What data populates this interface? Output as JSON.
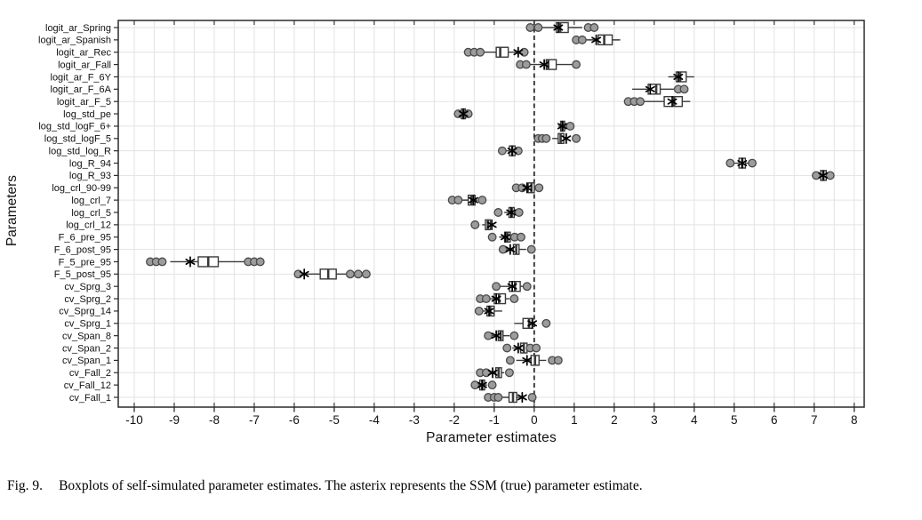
{
  "figure": {
    "caption_prefix": "Fig. 9.",
    "caption": "Boxplots of self-simulated parameter estimates. The asterix represents the SSM (true) parameter estimate."
  },
  "chart_data": {
    "type": "boxplot",
    "orientation": "horizontal",
    "title": "",
    "xlabel": "Parameter estimates",
    "ylabel": "Parameters",
    "xlim": [
      -10.4,
      8.25
    ],
    "xticks": [
      -10,
      -9,
      -8,
      -7,
      -6,
      -5,
      -4,
      -3,
      -2,
      -1,
      0,
      1,
      2,
      3,
      4,
      5,
      6,
      7,
      8
    ],
    "grid": true,
    "grid_step_x": 0.5,
    "zero_line": {
      "x": 0,
      "style": "dashed"
    },
    "legend_note": "asterisk = SSM (true) parameter estimate",
    "colors": {
      "box_fill": "#ffffff",
      "box_stroke": "#3a3a3a",
      "whisker": "#3a3a3a",
      "outlier_fill": "#9c9c9c",
      "outlier_stroke": "#4a4a4a",
      "asterisk": "#000000",
      "grid": "#e3e3e3",
      "frame": "#2b2b2b",
      "zero_line_color": "#1a1a1a"
    },
    "rows": [
      {
        "label": "logit_ar_Spring",
        "ssm_true": 0.6,
        "whisker_lo": 0.2,
        "q1": 0.55,
        "median": 0.65,
        "q3": 0.85,
        "whisker_hi": 1.2,
        "outliers": [
          -0.1,
          0.1,
          1.35,
          1.5
        ]
      },
      {
        "label": "logit_ar_Spanish",
        "ssm_true": 1.55,
        "whisker_lo": 1.3,
        "q1": 1.6,
        "median": 1.75,
        "q3": 1.95,
        "whisker_hi": 2.15,
        "outliers": [
          1.05,
          1.2
        ]
      },
      {
        "label": "logit_ar_Rec",
        "ssm_true": -0.4,
        "whisker_lo": -1.3,
        "q1": -0.95,
        "median": -0.85,
        "q3": -0.65,
        "whisker_hi": -0.45,
        "outliers": [
          -1.65,
          -1.5,
          -1.35,
          -0.25
        ]
      },
      {
        "label": "logit_ar_Fall",
        "ssm_true": 0.25,
        "whisker_lo": -0.1,
        "q1": 0.3,
        "median": 0.35,
        "q3": 0.55,
        "whisker_hi": 0.95,
        "outliers": [
          -0.35,
          -0.2,
          1.05
        ]
      },
      {
        "label": "logit_ar_F_6Y",
        "ssm_true": 3.6,
        "whisker_lo": 3.35,
        "q1": 3.55,
        "median": 3.65,
        "q3": 3.8,
        "whisker_hi": 4.0,
        "outliers": []
      },
      {
        "label": "logit_ar_F_6A",
        "ssm_true": 2.9,
        "whisker_lo": 2.45,
        "q1": 2.85,
        "median": 3.05,
        "q3": 3.15,
        "whisker_hi": 3.5,
        "outliers": [
          3.6,
          3.75
        ]
      },
      {
        "label": "logit_ar_F_5",
        "ssm_true": 3.45,
        "whisker_lo": 2.75,
        "q1": 3.25,
        "median": 3.5,
        "q3": 3.7,
        "whisker_hi": 3.9,
        "outliers": [
          2.35,
          2.5,
          2.65
        ]
      },
      {
        "label": "log_std_pe",
        "ssm_true": -1.77,
        "whisker_lo": -1.88,
        "q1": -1.82,
        "median": -1.77,
        "q3": -1.72,
        "whisker_hi": -1.66,
        "outliers": [
          -1.9,
          -1.65
        ]
      },
      {
        "label": "log_std_logF_6+",
        "ssm_true": 0.7,
        "whisker_lo": 0.6,
        "q1": 0.66,
        "median": 0.71,
        "q3": 0.76,
        "whisker_hi": 0.8,
        "outliers": [
          0.9
        ]
      },
      {
        "label": "log_std_logF_5",
        "ssm_true": 0.8,
        "whisker_lo": 0.45,
        "q1": 0.6,
        "median": 0.66,
        "q3": 0.74,
        "whisker_hi": 0.79,
        "outliers": [
          0.1,
          0.2,
          0.3,
          1.05
        ]
      },
      {
        "label": "log_std_log_R",
        "ssm_true": -0.55,
        "whisker_lo": -0.72,
        "q1": -0.62,
        "median": -0.55,
        "q3": -0.48,
        "whisker_hi": -0.4,
        "outliers": [
          -0.8,
          -0.4
        ]
      },
      {
        "label": "log_R_94",
        "ssm_true": 5.2,
        "whisker_lo": 5.0,
        "q1": 5.12,
        "median": 5.2,
        "q3": 5.28,
        "whisker_hi": 5.35,
        "outliers": [
          4.9,
          5.45
        ]
      },
      {
        "label": "log_R_93",
        "ssm_true": 7.22,
        "whisker_lo": 7.1,
        "q1": 7.16,
        "median": 7.23,
        "q3": 7.3,
        "whisker_hi": 7.34,
        "outliers": [
          7.05,
          7.4
        ]
      },
      {
        "label": "log_crl_90-99",
        "ssm_true": -0.18,
        "whisker_lo": -0.22,
        "q1": -0.15,
        "median": -0.07,
        "q3": 0.0,
        "whisker_hi": 0.04,
        "outliers": [
          -0.45,
          -0.3,
          0.12
        ]
      },
      {
        "label": "log_crl_7",
        "ssm_true": -1.52,
        "whisker_lo": -1.85,
        "q1": -1.65,
        "median": -1.57,
        "q3": -1.48,
        "whisker_hi": -1.42,
        "outliers": [
          -2.05,
          -1.9,
          -1.3
        ]
      },
      {
        "label": "log_crl_5",
        "ssm_true": -0.58,
        "whisker_lo": -0.75,
        "q1": -0.63,
        "median": -0.56,
        "q3": -0.5,
        "whisker_hi": -0.46,
        "outliers": [
          -0.9,
          -0.38
        ]
      },
      {
        "label": "log_crl_12",
        "ssm_true": -1.06,
        "whisker_lo": -1.3,
        "q1": -1.22,
        "median": -1.16,
        "q3": -1.1,
        "whisker_hi": -1.07,
        "outliers": [
          -1.48
        ]
      },
      {
        "label": "F_6_pre_95",
        "ssm_true": -0.72,
        "whisker_lo": -0.88,
        "q1": -0.74,
        "median": -0.67,
        "q3": -0.6,
        "whisker_hi": -0.55,
        "outliers": [
          -1.05,
          -0.49,
          -0.33
        ]
      },
      {
        "label": "F_6_post_95",
        "ssm_true": -0.6,
        "whisker_lo": -0.68,
        "q1": -0.52,
        "median": -0.45,
        "q3": -0.38,
        "whisker_hi": -0.2,
        "outliers": [
          -0.78,
          -0.07
        ]
      },
      {
        "label": "F_5_pre_95",
        "ssm_true": -8.6,
        "whisker_lo": -9.1,
        "q1": -8.4,
        "median": -8.15,
        "q3": -7.9,
        "whisker_hi": -7.25,
        "outliers": [
          -9.6,
          -9.45,
          -9.3,
          -7.15,
          -7.0,
          -6.85
        ]
      },
      {
        "label": "F_5_post_95",
        "ssm_true": -5.75,
        "whisker_lo": -5.72,
        "q1": -5.35,
        "median": -5.15,
        "q3": -4.95,
        "whisker_hi": -4.65,
        "outliers": [
          -5.9,
          -4.6,
          -4.4,
          -4.2
        ]
      },
      {
        "label": "cv_Sprg_3",
        "ssm_true": -0.55,
        "whisker_lo": -0.85,
        "q1": -0.62,
        "median": -0.48,
        "q3": -0.35,
        "whisker_hi": -0.28,
        "outliers": [
          -0.95,
          -0.18
        ]
      },
      {
        "label": "cv_Sprg_2",
        "ssm_true": -0.95,
        "whisker_lo": -1.1,
        "q1": -1.0,
        "median": -0.88,
        "q3": -0.72,
        "whisker_hi": -0.62,
        "outliers": [
          -1.35,
          -1.2,
          -0.5
        ]
      },
      {
        "label": "cv_Sprg_14",
        "ssm_true": -1.13,
        "whisker_lo": -1.3,
        "q1": -1.18,
        "median": -1.1,
        "q3": -1.0,
        "whisker_hi": -0.8,
        "outliers": [
          -1.38
        ]
      },
      {
        "label": "cv_Sprg_1",
        "ssm_true": -0.05,
        "whisker_lo": -0.5,
        "q1": -0.28,
        "median": -0.13,
        "q3": -0.04,
        "whisker_hi": 0.0,
        "outliers": [
          0.3
        ]
      },
      {
        "label": "cv_Span_8",
        "ssm_true": -0.95,
        "whisker_lo": -1.05,
        "q1": -0.9,
        "median": -0.84,
        "q3": -0.78,
        "whisker_hi": -0.62,
        "outliers": [
          -1.15,
          -0.5
        ]
      },
      {
        "label": "cv_Span_2",
        "ssm_true": -0.4,
        "whisker_lo": -0.55,
        "q1": -0.34,
        "median": -0.26,
        "q3": -0.18,
        "whisker_hi": -0.14,
        "outliers": [
          -0.68,
          -0.1,
          0.05
        ]
      },
      {
        "label": "cv_Span_1",
        "ssm_true": -0.18,
        "whisker_lo": -0.45,
        "q1": -0.08,
        "median": 0.02,
        "q3": 0.12,
        "whisker_hi": 0.3,
        "outliers": [
          -0.6,
          0.45,
          0.6
        ]
      },
      {
        "label": "cv_Fall_2",
        "ssm_true": -1.04,
        "whisker_lo": -1.12,
        "q1": -0.96,
        "median": -0.89,
        "q3": -0.82,
        "whisker_hi": -0.75,
        "outliers": [
          -1.35,
          -1.2,
          -0.62
        ]
      },
      {
        "label": "cv_Fall_12",
        "ssm_true": -1.3,
        "whisker_lo": -1.43,
        "q1": -1.36,
        "median": -1.3,
        "q3": -1.24,
        "whisker_hi": -1.18,
        "outliers": [
          -1.48,
          -1.05
        ]
      },
      {
        "label": "cv_Fall_1",
        "ssm_true": -0.3,
        "whisker_lo": -0.8,
        "q1": -0.63,
        "median": -0.53,
        "q3": -0.44,
        "whisker_hi": -0.35,
        "outliers": [
          -1.15,
          -1.0,
          -0.9,
          -0.05
        ]
      }
    ]
  }
}
